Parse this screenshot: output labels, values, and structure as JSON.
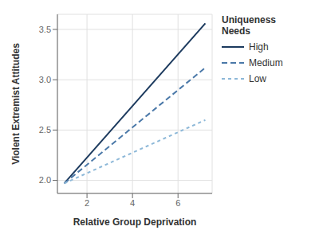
{
  "chart_data": {
    "type": "line",
    "xlabel": "Relative Group Deprivation",
    "ylabel": "Violent Extremist Attitudes",
    "legend_title": "Uniqueness Needs",
    "x": [
      1.0,
      7.2
    ],
    "series": [
      {
        "name": "High",
        "color": "#1c3a5e",
        "line_style": "solid",
        "values": [
          1.97,
          3.56
        ]
      },
      {
        "name": "Medium",
        "color": "#4a78a8",
        "line_style": "dashed",
        "values": [
          1.97,
          3.12
        ]
      },
      {
        "name": "Low",
        "color": "#8db8d8",
        "line_style": "dashed",
        "values": [
          1.97,
          2.6
        ]
      }
    ],
    "xlim": [
      0.7,
      7.5
    ],
    "ylim": [
      1.87,
      3.65
    ],
    "xticks": [
      2,
      4,
      6
    ],
    "yticks": [
      {
        "value": 2.0,
        "label": "2.0"
      },
      {
        "value": 2.5,
        "label": "2.5"
      },
      {
        "value": 3.0,
        "label": "3.0"
      },
      {
        "value": 3.5,
        "label": "3.5"
      }
    ],
    "grid": true,
    "legend": "right"
  }
}
